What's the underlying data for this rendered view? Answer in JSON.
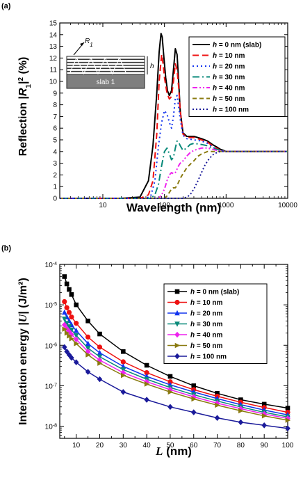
{
  "figure": {
    "panel_a_label": "(a)",
    "panel_b_label": "(b)"
  },
  "chart_data": [
    {
      "type": "line",
      "panel": "(a)",
      "xlabel": "Wavelength (nm)",
      "ylabel": "Reflection |R1|2 (%)",
      "ylabel_parts": {
        "pre": "Reflection |",
        "var": "R",
        "sub": "1",
        "post": "|",
        "sup": "2",
        "unit": " (%)"
      },
      "xscale": "log",
      "xlim": [
        2,
        10000
      ],
      "ylim": [
        0,
        15
      ],
      "xticks": [
        10,
        100,
        1000,
        10000
      ],
      "xtick_labels": [
        "10",
        "100",
        "1000",
        "10000"
      ],
      "yticks": [
        0,
        1,
        2,
        3,
        4,
        5,
        6,
        7,
        8,
        9,
        10,
        11,
        12,
        13,
        14,
        15
      ],
      "legend_position": "top-right",
      "inset": {
        "incident_label": "R1",
        "thickness_label": "h",
        "slab_label": "slab 1"
      },
      "series": [
        {
          "name": "h = 0 nm (slab)",
          "color": "#000000",
          "dash": "",
          "width": 2,
          "x": [
            2,
            20,
            40,
            55,
            65,
            75,
            82,
            88,
            92,
            98,
            105,
            112,
            120,
            130,
            140,
            150,
            160,
            170,
            180,
            200,
            230,
            300,
            400,
            500,
            600,
            700,
            800,
            900,
            1000,
            1500,
            2000,
            10000
          ],
          "y": [
            0,
            0,
            0.1,
            1.5,
            4.5,
            9,
            12.5,
            14.1,
            13.8,
            12,
            10.3,
            9.2,
            8.8,
            9.2,
            11,
            12.8,
            12.3,
            10,
            7.5,
            5.6,
            5.3,
            5.3,
            5.1,
            4.9,
            4.6,
            4.4,
            4.2,
            4.1,
            4.0,
            4.0,
            4.0,
            4.0
          ]
        },
        {
          "name": "h = 10 nm",
          "color": "#ee1111",
          "dash": "9,5",
          "width": 2,
          "x": [
            2,
            40,
            55,
            65,
            75,
            82,
            90,
            95,
            100,
            110,
            120,
            130,
            140,
            150,
            160,
            170,
            180,
            200,
            230,
            300,
            400,
            500,
            600,
            700,
            800,
            1000,
            2000,
            10000
          ],
          "y": [
            0,
            0,
            0.3,
            1.5,
            5.5,
            10,
            12.3,
            11.5,
            10.3,
            9,
            8.5,
            8.7,
            10,
            11.5,
            11,
            9.5,
            7.5,
            5.5,
            5.2,
            5.2,
            5.0,
            4.8,
            4.5,
            4.3,
            4.1,
            4.0,
            4.0,
            4.0
          ]
        },
        {
          "name": "h = 20 nm",
          "color": "#1133ee",
          "dash": "2,4",
          "width": 2,
          "x": [
            2,
            50,
            60,
            70,
            80,
            90,
            100,
            110,
            120,
            130,
            140,
            150,
            160,
            170,
            180,
            200,
            230,
            300,
            400,
            500,
            600,
            700,
            800,
            1000,
            2000,
            10000
          ],
          "y": [
            0,
            0,
            0.2,
            1.5,
            4.5,
            6.5,
            7.5,
            7.2,
            6.5,
            6.0,
            7.0,
            8.5,
            8.8,
            7.8,
            6.8,
            5.4,
            5.1,
            5.0,
            4.9,
            4.7,
            4.4,
            4.2,
            4.1,
            4.0,
            4.0,
            4.0
          ]
        },
        {
          "name": "h = 30 nm",
          "color": "#0a8a7a",
          "dash": "10,4,2,4",
          "width": 2,
          "x": [
            2,
            60,
            70,
            80,
            90,
            100,
            110,
            120,
            130,
            140,
            150,
            160,
            170,
            180,
            200,
            230,
            260,
            300,
            400,
            500,
            600,
            700,
            800,
            1000,
            2000,
            10000
          ],
          "y": [
            0,
            0,
            0.3,
            1.2,
            2.8,
            4.0,
            4.3,
            3.8,
            3.3,
            3.5,
            4.3,
            4.9,
            4.8,
            4.5,
            4.1,
            4.3,
            4.6,
            4.7,
            4.6,
            4.5,
            4.3,
            4.2,
            4.1,
            4.0,
            4.0,
            4.0
          ]
        },
        {
          "name": "h = 40 nm",
          "color": "#ee22ee",
          "dash": "7,3,2,3,2,3",
          "width": 2,
          "x": [
            2,
            80,
            90,
            100,
            110,
            120,
            130,
            140,
            150,
            160,
            170,
            180,
            200,
            230,
            260,
            300,
            400,
            500,
            600,
            700,
            800,
            1000,
            2000,
            10000
          ],
          "y": [
            0,
            0,
            0.3,
            0.8,
            1.5,
            2.0,
            2.2,
            2.1,
            2.2,
            2.5,
            2.8,
            3.0,
            3.2,
            3.6,
            3.9,
            4.1,
            4.3,
            4.3,
            4.2,
            4.1,
            4.05,
            4.0,
            4.0,
            4.0
          ]
        },
        {
          "name": "h = 50 nm",
          "color": "#8a7a10",
          "dash": "6,4",
          "width": 2,
          "x": [
            2,
            100,
            110,
            120,
            130,
            140,
            150,
            160,
            170,
            180,
            200,
            230,
            260,
            300,
            350,
            400,
            500,
            600,
            700,
            800,
            1000,
            2000,
            10000
          ],
          "y": [
            0,
            0,
            0.2,
            0.5,
            0.8,
            0.9,
            0.9,
            1.1,
            1.4,
            1.7,
            2.1,
            2.6,
            2.9,
            3.2,
            3.6,
            3.8,
            4.0,
            4.0,
            4.0,
            4.0,
            4.0,
            4.0,
            4.0
          ]
        },
        {
          "name": "h = 100 nm",
          "color": "#1a1a9a",
          "dash": "2,3",
          "width": 2,
          "x": [
            2,
            200,
            230,
            260,
            300,
            350,
            400,
            450,
            500,
            600,
            700,
            800,
            900,
            1000,
            1500,
            2000,
            10000
          ],
          "y": [
            0,
            0,
            0.1,
            0.3,
            0.8,
            1.5,
            2.2,
            2.8,
            3.2,
            3.7,
            3.9,
            4.0,
            4.0,
            4.0,
            4.0,
            4.0,
            4.0
          ]
        }
      ]
    },
    {
      "type": "line",
      "panel": "(b)",
      "xlabel": "L (nm)",
      "xlabel_parts": {
        "var": "L",
        "unit": " (nm)"
      },
      "ylabel": "Interaction energy |U| (J/m²)",
      "ylabel_parts": {
        "pre": "Interaction energy |",
        "var": "U",
        "post": "| (J/m²)"
      },
      "yscale": "log",
      "xlim": [
        3,
        100
      ],
      "ylim": [
        5e-09,
        0.0001
      ],
      "xticks": [
        10,
        20,
        30,
        40,
        50,
        60,
        70,
        80,
        90,
        100
      ],
      "ytick_labels": [
        {
          "exp": "-4",
          "value": 0.0001
        },
        {
          "exp": "-5",
          "value": 1e-05
        },
        {
          "exp": "-6",
          "value": 1e-06
        },
        {
          "exp": "-7",
          "value": 1e-07
        },
        {
          "exp": "-8",
          "value": 1e-08
        }
      ],
      "ytick_base": "10",
      "legend_position": "top-right",
      "x": [
        5,
        6,
        7,
        8,
        10,
        15,
        20,
        30,
        40,
        50,
        60,
        70,
        80,
        90,
        100
      ],
      "series": [
        {
          "name": "h = 0 nm (slab)",
          "color": "#000000",
          "marker": "square",
          "values": [
            5e-05,
            3.3e-05,
            2.4e-05,
            1.8e-05,
            1e-05,
            4e-06,
            1.9e-06,
            7e-07,
            3.2e-07,
            1.7e-07,
            1e-07,
            6.5e-08,
            4.5e-08,
            3.5e-08,
            2.8e-08
          ]
        },
        {
          "name": "h = 10 nm",
          "color": "#ee1111",
          "marker": "circle",
          "values": [
            1.2e-05,
            8.5e-06,
            6.5e-06,
            5e-06,
            3.5e-06,
            1.6e-06,
            9e-07,
            3.9e-07,
            2.1e-07,
            1.25e-07,
            8e-08,
            5.5e-08,
            3.9e-08,
            2.9e-08,
            2.2e-08
          ]
        },
        {
          "name": "h = 20 nm",
          "color": "#1133ee",
          "marker": "triangle-up",
          "values": [
            6.5e-06,
            5e-06,
            4e-06,
            3.2e-06,
            2.3e-06,
            1.1e-06,
            6.5e-07,
            3e-07,
            1.7e-07,
            1.05e-07,
            7e-08,
            4.8e-08,
            3.4e-08,
            2.5e-08,
            1.9e-08
          ]
        },
        {
          "name": "h = 30 nm",
          "color": "#0a8a7a",
          "marker": "triangle-down",
          "values": [
            4.5e-06,
            3.5e-06,
            2.9e-06,
            2.4e-06,
            1.75e-06,
            8.5e-07,
            5.2e-07,
            2.5e-07,
            1.45e-07,
            9e-08,
            6e-08,
            4.2e-08,
            3e-08,
            2.2e-08,
            1.7e-08
          ]
        },
        {
          "name": "h = 40 nm",
          "color": "#ee22ee",
          "marker": "diamond",
          "values": [
            3.2e-06,
            2.6e-06,
            2.2e-06,
            1.85e-06,
            1.4e-06,
            7e-07,
            4.3e-07,
            2.1e-07,
            1.25e-07,
            8e-08,
            5.3e-08,
            3.7e-08,
            2.7e-08,
            2e-08,
            1.55e-08
          ]
        },
        {
          "name": "h = 50 nm",
          "color": "#8a7a10",
          "marker": "triangle-right",
          "values": [
            2.5e-06,
            2e-06,
            1.7e-06,
            1.45e-06,
            1.1e-06,
            5.8e-07,
            3.6e-07,
            1.8e-07,
            1.1e-07,
            7e-08,
            4.7e-08,
            3.3e-08,
            2.4e-08,
            1.8e-08,
            1.4e-08
          ]
        },
        {
          "name": "h = 100 nm",
          "color": "#1a1a9a",
          "marker": "diamond",
          "values": [
            9e-07,
            7e-07,
            5.8e-07,
            4.9e-07,
            3.8e-07,
            2.2e-07,
            1.45e-07,
            7e-08,
            4.5e-08,
            3e-08,
            2.2e-08,
            1.6e-08,
            1.25e-08,
            1.05e-08,
            8.8e-09
          ]
        }
      ]
    }
  ]
}
